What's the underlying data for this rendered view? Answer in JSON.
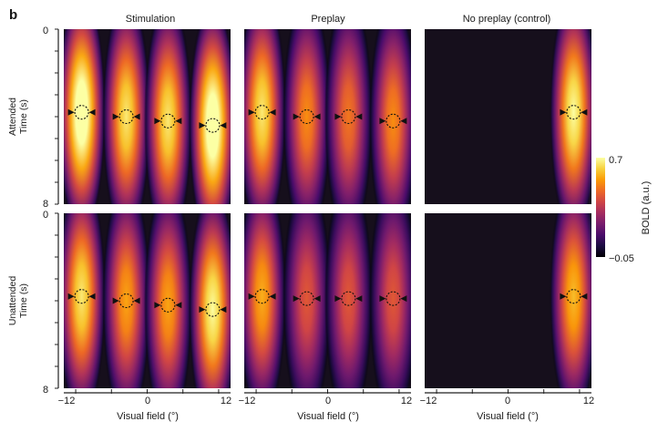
{
  "figure": {
    "panel_letter": "b",
    "columns": [
      "Stimulation",
      "Preplay",
      "No preplay (control)"
    ],
    "rows": [
      {
        "label_line1": "Attended",
        "label_line2": "Time (s)"
      },
      {
        "label_line1": "Unattended",
        "label_line2": "Time (s)"
      }
    ],
    "y_ticks": [
      "0",
      "8"
    ],
    "x_ticks": [
      "−12",
      "0",
      "12"
    ],
    "xlabel": "Visual field (°)",
    "colorbar": {
      "label": "BOLD (a.u.)",
      "max_label": "0.7",
      "min_label": "−0.05"
    }
  },
  "chart_data": {
    "type": "heatmap",
    "title": "",
    "xlabel": "Visual field (°)",
    "ylabel": "Time (s)",
    "xlim": [
      -14,
      14
    ],
    "ylim": [
      0,
      8
    ],
    "x_ticks": [
      -12,
      0,
      12
    ],
    "y_ticks": [
      0,
      8
    ],
    "clim": [
      -0.05,
      0.7
    ],
    "colormap": [
      "#000004",
      "#1b0c41",
      "#4a0c6b",
      "#781c6d",
      "#a52c60",
      "#cf4446",
      "#ed6925",
      "#fb9b06",
      "#f7d13d",
      "#fcffa4"
    ],
    "panels": [
      {
        "row": "Attended",
        "column": "Stimulation",
        "blobs": [
          {
            "x": -11,
            "peak_time": 3.8,
            "amplitude": 1.15
          },
          {
            "x": -3.5,
            "peak_time": 4.0,
            "amplitude": 0.95
          },
          {
            "x": 3.5,
            "peak_time": 4.2,
            "amplitude": 0.95
          },
          {
            "x": 11,
            "peak_time": 4.4,
            "amplitude": 1.15
          }
        ]
      },
      {
        "row": "Attended",
        "column": "Preplay",
        "blobs": [
          {
            "x": -11,
            "peak_time": 3.8,
            "amplitude": 0.95
          },
          {
            "x": -3.5,
            "peak_time": 4.0,
            "amplitude": 0.75
          },
          {
            "x": 3.5,
            "peak_time": 4.0,
            "amplitude": 0.7
          },
          {
            "x": 11,
            "peak_time": 4.2,
            "amplitude": 0.75
          }
        ]
      },
      {
        "row": "Attended",
        "column": "No preplay (control)",
        "blobs": [
          {
            "x": 11,
            "peak_time": 3.8,
            "amplitude": 1.0
          }
        ]
      },
      {
        "row": "Unattended",
        "column": "Stimulation",
        "blobs": [
          {
            "x": -11,
            "peak_time": 3.8,
            "amplitude": 0.95
          },
          {
            "x": -3.5,
            "peak_time": 4.0,
            "amplitude": 0.8
          },
          {
            "x": 3.5,
            "peak_time": 4.2,
            "amplitude": 0.8
          },
          {
            "x": 11,
            "peak_time": 4.4,
            "amplitude": 1.0
          }
        ]
      },
      {
        "row": "Unattended",
        "column": "Preplay",
        "blobs": [
          {
            "x": -11,
            "peak_time": 3.8,
            "amplitude": 0.82
          },
          {
            "x": -3.5,
            "peak_time": 3.9,
            "amplitude": 0.62
          },
          {
            "x": 3.5,
            "peak_time": 3.9,
            "amplitude": 0.62
          },
          {
            "x": 11,
            "peak_time": 3.9,
            "amplitude": 0.62
          }
        ]
      },
      {
        "row": "Unattended",
        "column": "No preplay (control)",
        "blobs": [
          {
            "x": 11,
            "peak_time": 3.8,
            "amplitude": 0.85
          }
        ]
      }
    ]
  }
}
